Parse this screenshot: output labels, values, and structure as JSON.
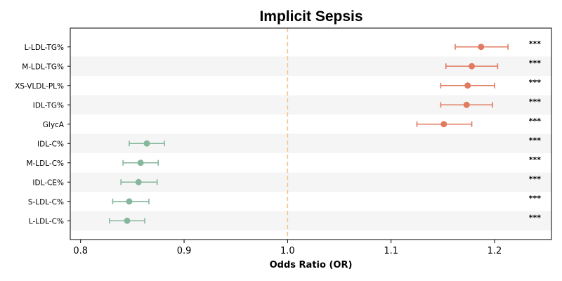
{
  "chart_data": {
    "type": "forest",
    "title": "Implicit Sepsis",
    "xlabel": "Odds Ratio (OR)",
    "ylabel": "",
    "xlim": [
      0.79,
      1.255
    ],
    "xticks": [
      0.8,
      0.9,
      1.0,
      1.1,
      1.2
    ],
    "xtick_labels": [
      "0.8",
      "0.9",
      "1.0",
      "1.1",
      "1.2"
    ],
    "reference_line": 1.0,
    "reference_line_style": "dashed",
    "alternating_row_shading": true,
    "colors": {
      "increased_risk": "#e07b60",
      "decreased_risk": "#86b79d",
      "reference_line": "#f5c48c",
      "row_shade": "#f5f5f5"
    },
    "rows": [
      {
        "label": "L-LDL-TG%",
        "or": 1.187,
        "ci_low": 1.162,
        "ci_high": 1.213,
        "significance": "***"
      },
      {
        "label": "M-LDL-TG%",
        "or": 1.178,
        "ci_low": 1.153,
        "ci_high": 1.203,
        "significance": "***"
      },
      {
        "label": "XS-VLDL-PL%",
        "or": 1.174,
        "ci_low": 1.148,
        "ci_high": 1.2,
        "significance": "***"
      },
      {
        "label": "IDL-TG%",
        "or": 1.173,
        "ci_low": 1.148,
        "ci_high": 1.198,
        "significance": "***"
      },
      {
        "label": "GlycA",
        "or": 1.151,
        "ci_low": 1.125,
        "ci_high": 1.178,
        "significance": "***"
      },
      {
        "label": "IDL-C%",
        "or": 0.864,
        "ci_low": 0.847,
        "ci_high": 0.881,
        "significance": "***"
      },
      {
        "label": "M-LDL-C%",
        "or": 0.858,
        "ci_low": 0.841,
        "ci_high": 0.875,
        "significance": "***"
      },
      {
        "label": "IDL-CE%",
        "or": 0.856,
        "ci_low": 0.839,
        "ci_high": 0.874,
        "significance": "***"
      },
      {
        "label": "S-LDL-C%",
        "or": 0.847,
        "ci_low": 0.831,
        "ci_high": 0.866,
        "significance": "***"
      },
      {
        "label": "L-LDL-C%",
        "or": 0.845,
        "ci_low": 0.828,
        "ci_high": 0.862,
        "significance": "***"
      }
    ]
  }
}
